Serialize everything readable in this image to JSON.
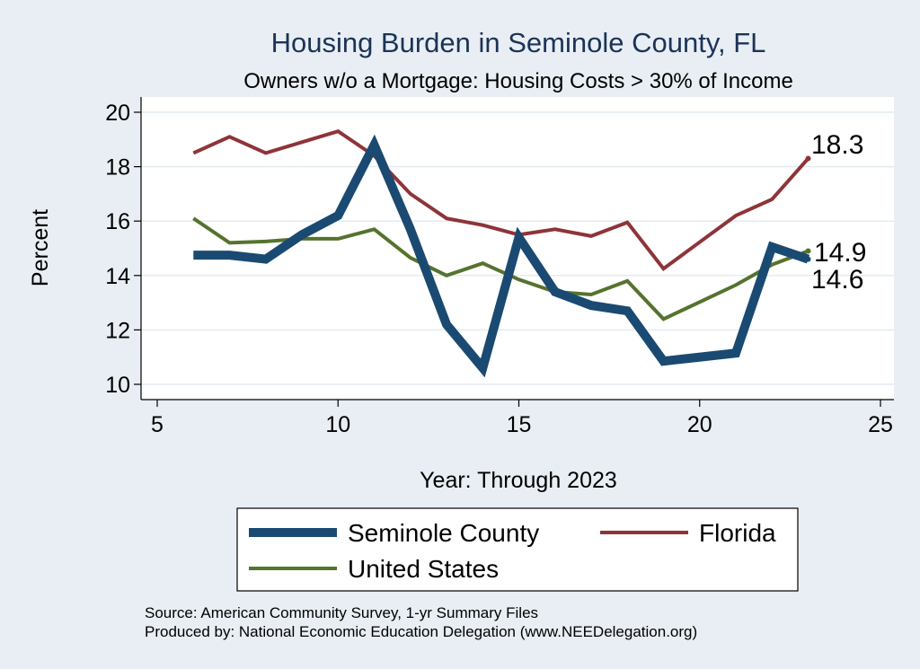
{
  "chart_data": {
    "type": "line",
    "title": "Housing Burden in Seminole County, FL",
    "subtitle": "Owners w/o a Mortgage: Housing Costs > 30% of Income",
    "xlabel": "Year: Through 2023",
    "ylabel": "Percent",
    "xlim": [
      5,
      25
    ],
    "ylim": [
      10,
      20
    ],
    "xticks": [
      5,
      10,
      15,
      20,
      25
    ],
    "yticks": [
      10,
      12,
      14,
      16,
      18,
      20
    ],
    "grid": true,
    "legend_position": "bottom",
    "series": [
      {
        "name": "Seminole County",
        "color": "#1a4a72",
        "x": [
          6,
          7,
          8,
          9,
          10,
          11,
          12,
          13,
          14,
          15,
          16,
          17,
          18,
          19,
          21,
          22,
          23
        ],
        "y": [
          14.75,
          14.75,
          14.6,
          15.5,
          16.2,
          18.8,
          15.7,
          12.2,
          10.6,
          15.4,
          13.4,
          12.9,
          12.7,
          10.85,
          11.15,
          15.05,
          14.6
        ],
        "end_label": "14.6"
      },
      {
        "name": "Florida",
        "color": "#8e3439",
        "x": [
          6,
          7,
          8,
          9,
          10,
          11,
          12,
          13,
          14,
          15,
          16,
          17,
          18,
          19,
          21,
          22,
          23
        ],
        "y": [
          18.5,
          19.1,
          18.5,
          18.9,
          19.3,
          18.4,
          17.0,
          16.1,
          15.85,
          15.5,
          15.7,
          15.45,
          15.95,
          14.25,
          16.2,
          16.8,
          18.3
        ],
        "end_label": "18.3"
      },
      {
        "name": "United States",
        "color": "#55732e",
        "x": [
          6,
          7,
          8,
          9,
          10,
          11,
          12,
          13,
          14,
          15,
          16,
          17,
          18,
          19,
          21,
          22,
          23
        ],
        "y": [
          16.1,
          15.2,
          15.25,
          15.35,
          15.35,
          15.7,
          14.65,
          14.0,
          14.45,
          13.85,
          13.4,
          13.3,
          13.8,
          12.4,
          13.65,
          14.4,
          14.9
        ],
        "end_label": "14.9"
      }
    ]
  },
  "notes": {
    "source": "Source: American Community Survey, 1-yr Summary Files",
    "produced_by": "Produced by: National Economic Education Delegation (www.NEEDelegation.org)"
  }
}
